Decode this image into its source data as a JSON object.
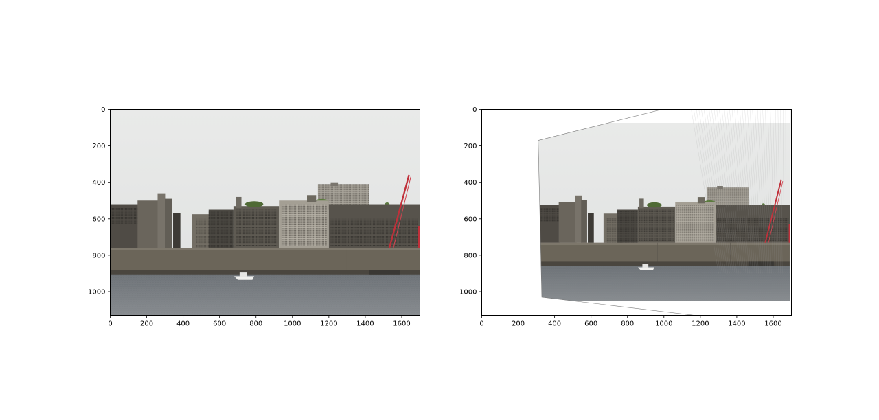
{
  "chart_data": [
    {
      "type": "image",
      "panel": "left",
      "title": "",
      "xlabel": "",
      "ylabel": "",
      "xlim": [
        0,
        1700
      ],
      "ylim": [
        1130,
        0
      ],
      "xticks": [
        0,
        200,
        400,
        600,
        800,
        1000,
        1200,
        1400,
        1600
      ],
      "yticks": [
        0,
        200,
        400,
        600,
        800,
        1000
      ],
      "content": "photo of abandoned island buildings behind a sea wall with a red crane, water in foreground"
    },
    {
      "type": "image",
      "panel": "right",
      "title": "",
      "xlabel": "",
      "ylabel": "",
      "xlim": [
        0,
        1700
      ],
      "ylim": [
        1130,
        0
      ],
      "xticks": [
        0,
        200,
        400,
        600,
        800,
        1000,
        1200,
        1400,
        1600
      ],
      "yticks": [
        0,
        200,
        400,
        600,
        800,
        1000
      ],
      "warped_quad": [
        [
          310,
          170
        ],
        [
          990,
          0
        ],
        [
          1700,
          0
        ],
        [
          1700,
          1130
        ],
        [
          1170,
          1130
        ],
        [
          330,
          1030
        ]
      ],
      "content": "same photo after a perspective (homography) warp, white background outside the warped region"
    }
  ],
  "colors": {
    "sky": "#e6e7e6",
    "building": "#5e5a52",
    "wall": "#6b6559",
    "water": "#7a7e82",
    "crane": "#c0303a"
  }
}
